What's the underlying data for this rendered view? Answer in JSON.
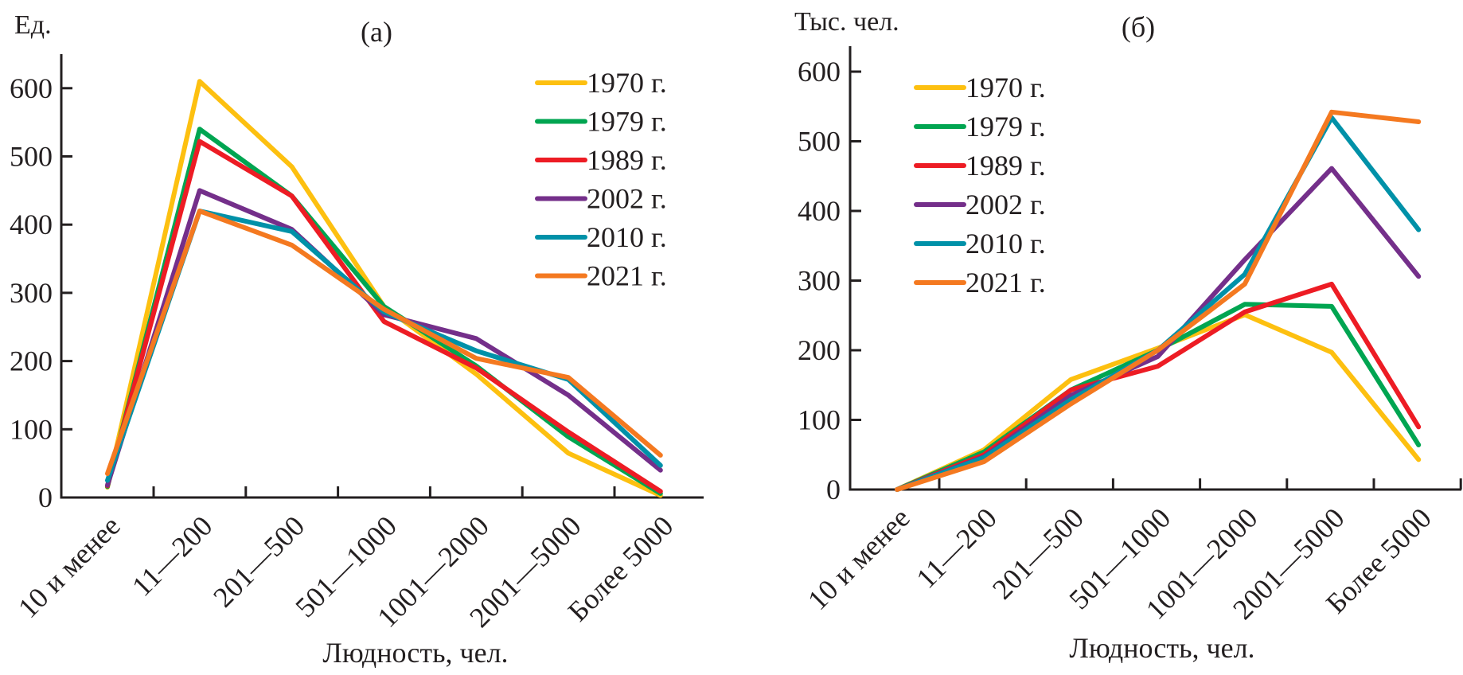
{
  "chart_data": [
    {
      "type": "line",
      "panel_label": "(а)",
      "ylabel": "Ед.",
      "xlabel": "Людность, чел.",
      "categories": [
        "10 и менее",
        "11—200",
        "201—500",
        "501—1000",
        "1001—2000",
        "2001—5000",
        "Более 5000"
      ],
      "yticks": [
        0,
        100,
        200,
        300,
        400,
        500,
        600
      ],
      "ylim": [
        0,
        650
      ],
      "grid": false,
      "legend_position": "top-right",
      "series": [
        {
          "name": "1970 г.",
          "color": "#fdc010",
          "values": [
            15,
            610,
            485,
            280,
            181,
            65,
            3
          ]
        },
        {
          "name": "1979 г.",
          "color": "#00a551",
          "values": [
            16,
            540,
            442,
            280,
            193,
            89,
            6
          ]
        },
        {
          "name": "1989 г.",
          "color": "#ed1c24",
          "values": [
            17,
            522,
            442,
            258,
            190,
            96,
            9
          ]
        },
        {
          "name": "2002 г.",
          "color": "#742f8a",
          "values": [
            18,
            450,
            393,
            268,
            233,
            150,
            40
          ]
        },
        {
          "name": "2010 г.",
          "color": "#0091a8",
          "values": [
            25,
            420,
            390,
            272,
            215,
            173,
            47
          ]
        },
        {
          "name": "2021 г.",
          "color": "#f47920",
          "values": [
            35,
            420,
            370,
            276,
            204,
            176,
            62
          ]
        }
      ]
    },
    {
      "type": "line",
      "panel_label": "(б)",
      "ylabel": "Тыс. чел.",
      "xlabel": "Людность, чел.",
      "categories": [
        "10 и менее",
        "11—200",
        "201—500",
        "501—1000",
        "1001—2000",
        "2001—5000",
        "Более 5000"
      ],
      "yticks": [
        0,
        100,
        200,
        300,
        400,
        500,
        600
      ],
      "ylim": [
        0,
        630
      ],
      "grid": false,
      "legend_position": "top-left",
      "series": [
        {
          "name": "1970 г.",
          "color": "#fdc010",
          "values": [
            0,
            57,
            158,
            203,
            251,
            197,
            43
          ]
        },
        {
          "name": "1979 г.",
          "color": "#00a551",
          "values": [
            0,
            54,
            143,
            200,
            266,
            263,
            64
          ]
        },
        {
          "name": "1989 г.",
          "color": "#ed1c24",
          "values": [
            0,
            50,
            143,
            177,
            255,
            295,
            90
          ]
        },
        {
          "name": "2002 г.",
          "color": "#742f8a",
          "values": [
            0,
            47,
            135,
            191,
            330,
            461,
            306
          ]
        },
        {
          "name": "2010 г.",
          "color": "#0091a8",
          "values": [
            0,
            46,
            129,
            200,
            309,
            534,
            373
          ]
        },
        {
          "name": "2021 г.",
          "color": "#f47920",
          "values": [
            0,
            40,
            123,
            200,
            295,
            542,
            528
          ]
        }
      ]
    }
  ]
}
